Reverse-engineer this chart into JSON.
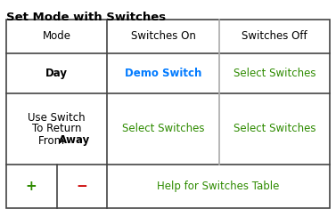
{
  "title": "Set Mode with Switches",
  "title_fontsize": 9.5,
  "title_fontweight": "bold",
  "fig_bg": "#ffffff",
  "border_color": "#444444",
  "border_lw": 1.2,
  "light_line_color": "#aaaaaa",
  "header_row": [
    "Mode",
    "Switches On",
    "Switches Off"
  ],
  "header_fontsize": 8.5,
  "cell_fontsize": 8.5,
  "text_color": "#000000",
  "row1_col0_text": "Day",
  "row1_col1_text": "Demo Switch",
  "row1_col1_color": "#007AFF",
  "row1_col2_text": "Select Switches",
  "row1_col2_color": "#2E8B00",
  "row2_col0_line1": "Use Switch",
  "row2_col0_line2": "To Return",
  "row2_col0_line3": "From ",
  "row2_col0_bold": "Away",
  "row2_col1_text": "Select Switches",
  "row2_col1_color": "#2E8B00",
  "row2_col2_text": "Select Switches",
  "row2_col2_color": "#2E8B00",
  "footer_plus": "+",
  "footer_plus_color": "#2E8B00",
  "footer_minus": "−",
  "footer_minus_color": "#CC0000",
  "footer_help_text": "Help for Switches Table",
  "footer_help_color": "#2E8B00",
  "footer_fontsize": 8.5,
  "plus_minus_fontsize": 11
}
